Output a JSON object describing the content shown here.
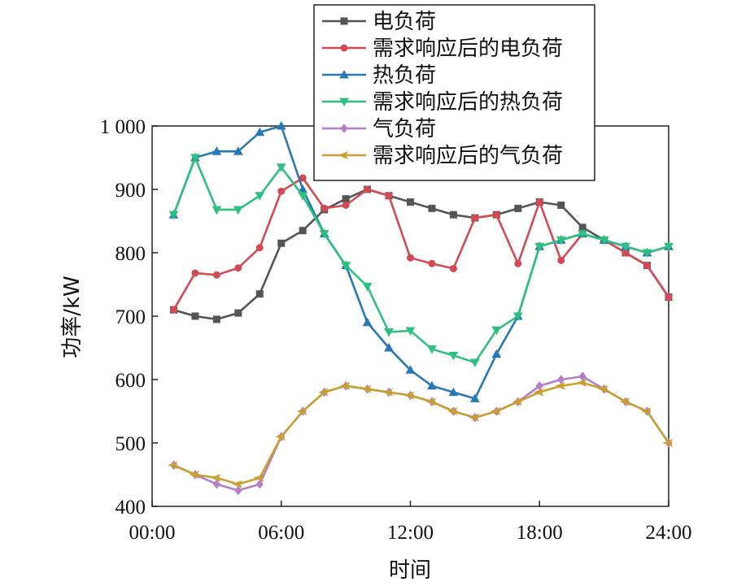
{
  "chart_data": {
    "type": "line",
    "title": "",
    "xlabel": "时间",
    "ylabel": "功率/kW",
    "xlim": [
      0,
      24
    ],
    "ylim": [
      400,
      1000
    ],
    "x_ticks": [
      0,
      6,
      12,
      18,
      24
    ],
    "x_tick_labels": [
      "00:00",
      "06:00",
      "12:00",
      "18:00",
      "24:00"
    ],
    "y_ticks": [
      400,
      500,
      600,
      700,
      800,
      900,
      1000
    ],
    "y_tick_labels": [
      "400",
      "500",
      "600",
      "700",
      "800",
      "900",
      "1 000"
    ],
    "grid": false,
    "legend_position": "top-right",
    "x": [
      1,
      2,
      3,
      4,
      5,
      6,
      7,
      8,
      9,
      10,
      11,
      12,
      13,
      14,
      15,
      16,
      17,
      18,
      19,
      20,
      21,
      22,
      23,
      24
    ],
    "series": [
      {
        "name": "电负荷",
        "color": "#555555",
        "marker": "square",
        "values": [
          710,
          700,
          695,
          705,
          735,
          815,
          835,
          868,
          885,
          900,
          890,
          880,
          870,
          860,
          855,
          860,
          870,
          880,
          875,
          840,
          820,
          800,
          780,
          730
        ]
      },
      {
        "name": "需求响应后的电负荷",
        "color": "#d34a55",
        "marker": "circle",
        "values": [
          710,
          768,
          765,
          776,
          808,
          897,
          918,
          870,
          875,
          900,
          890,
          792,
          783,
          775,
          855,
          860,
          783,
          880,
          788,
          830,
          820,
          800,
          780,
          730
        ]
      },
      {
        "name": "热负荷",
        "color": "#2878b5",
        "marker": "triangle-up",
        "values": [
          860,
          950,
          960,
          960,
          990,
          1000,
          900,
          830,
          780,
          690,
          650,
          615,
          590,
          580,
          570,
          640,
          700,
          810,
          820,
          830,
          820,
          810,
          800,
          810
        ]
      },
      {
        "name": "需求响应后的热负荷",
        "color": "#2fbf80",
        "marker": "triangle-down",
        "values": [
          860,
          950,
          868,
          868,
          890,
          935,
          890,
          830,
          780,
          747,
          675,
          677,
          648,
          638,
          627,
          678,
          700,
          810,
          820,
          830,
          820,
          810,
          800,
          810
        ]
      },
      {
        "name": "气负荷",
        "color": "#b57fc8",
        "marker": "diamond",
        "values": [
          465,
          450,
          435,
          425,
          435,
          510,
          550,
          580,
          590,
          585,
          580,
          575,
          565,
          550,
          540,
          550,
          565,
          590,
          600,
          605,
          585,
          565,
          550,
          500
        ]
      },
      {
        "name": "需求响应后的气负荷",
        "color": "#c8a032",
        "marker": "diamond-left",
        "values": [
          465,
          450,
          445,
          435,
          445,
          510,
          550,
          580,
          590,
          585,
          580,
          575,
          565,
          550,
          540,
          550,
          565,
          580,
          590,
          595,
          585,
          565,
          550,
          500
        ]
      }
    ]
  }
}
